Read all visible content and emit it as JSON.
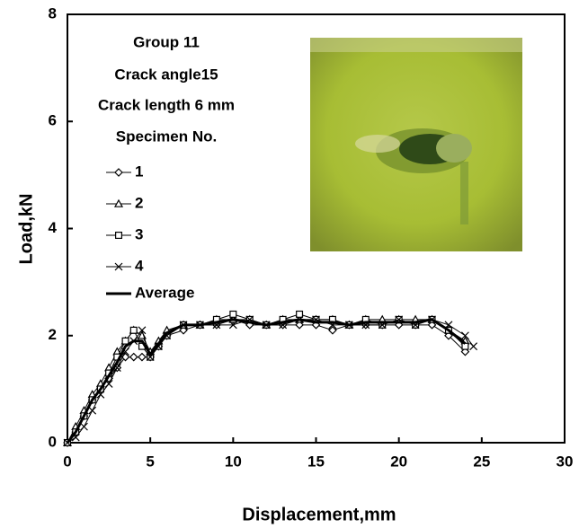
{
  "chart_data": {
    "type": "line",
    "annotations": [
      "Group 11",
      "Crack angle15",
      "Crack length  6 mm",
      "Specimen No."
    ],
    "x_label": "Displacement,mm",
    "y_label": "Load,kN",
    "xlim": [
      0,
      30
    ],
    "xticks": [
      0,
      5,
      10,
      15,
      20,
      25,
      30
    ],
    "ylim": [
      0,
      8
    ],
    "yticks": [
      0,
      2,
      4,
      6,
      8
    ],
    "grid": false,
    "x": [
      0,
      0.5,
      1,
      1.5,
      2,
      2.5,
      3,
      3.5,
      4,
      4.5,
      5,
      5.5,
      6,
      7,
      8,
      9,
      10,
      11,
      12,
      13,
      14,
      15,
      16,
      17,
      18,
      19,
      20,
      21,
      22,
      23,
      24,
      24.5
    ],
    "series": [
      {
        "name": "1",
        "color": "#000000",
        "marker": "diamond",
        "width": 1,
        "values": [
          0,
          0.2,
          0.5,
          0.8,
          1.0,
          1.2,
          1.4,
          1.6,
          1.6,
          1.6,
          1.6,
          1.8,
          2.0,
          2.1,
          2.2,
          2.2,
          2.3,
          2.2,
          2.2,
          2.2,
          2.2,
          2.2,
          2.1,
          2.2,
          2.2,
          2.2,
          2.2,
          2.2,
          2.2,
          2.0,
          1.7,
          null
        ]
      },
      {
        "name": "2",
        "color": "#000000",
        "marker": "triangle",
        "width": 1,
        "values": [
          0,
          0.3,
          0.6,
          0.9,
          1.1,
          1.4,
          1.7,
          1.9,
          2.1,
          2.0,
          1.7,
          1.9,
          2.1,
          2.2,
          2.2,
          2.3,
          2.3,
          2.3,
          2.2,
          2.3,
          2.3,
          2.3,
          2.3,
          2.2,
          2.3,
          2.3,
          2.3,
          2.3,
          2.3,
          2.1,
          1.9,
          null
        ]
      },
      {
        "name": "3",
        "color": "#000000",
        "marker": "square",
        "width": 1,
        "values": [
          0,
          0.2,
          0.5,
          0.8,
          1.0,
          1.3,
          1.6,
          1.9,
          2.1,
          1.8,
          1.6,
          1.8,
          2.0,
          2.2,
          2.2,
          2.3,
          2.4,
          2.3,
          2.2,
          2.3,
          2.4,
          2.3,
          2.3,
          2.2,
          2.3,
          2.2,
          2.3,
          2.2,
          2.3,
          2.1,
          1.8,
          null
        ]
      },
      {
        "name": "4",
        "color": "#000000",
        "marker": "x",
        "width": 1,
        "values": [
          0,
          0.1,
          0.3,
          0.6,
          0.9,
          1.1,
          1.4,
          1.7,
          1.9,
          2.1,
          1.6,
          1.8,
          2.0,
          2.2,
          2.2,
          2.2,
          2.2,
          2.3,
          2.2,
          2.2,
          2.3,
          2.3,
          2.2,
          2.2,
          2.2,
          2.2,
          2.3,
          2.2,
          2.3,
          2.2,
          2.0,
          1.8
        ]
      },
      {
        "name": "Average",
        "color": "#000000",
        "marker": "none",
        "width": 3,
        "values": [
          0,
          0.2,
          0.5,
          0.8,
          1.0,
          1.25,
          1.5,
          1.8,
          1.9,
          1.9,
          1.65,
          1.85,
          2.05,
          2.2,
          2.2,
          2.25,
          2.3,
          2.25,
          2.2,
          2.25,
          2.3,
          2.25,
          2.25,
          2.2,
          2.25,
          2.25,
          2.25,
          2.25,
          2.3,
          2.1,
          1.85,
          null
        ]
      }
    ]
  }
}
